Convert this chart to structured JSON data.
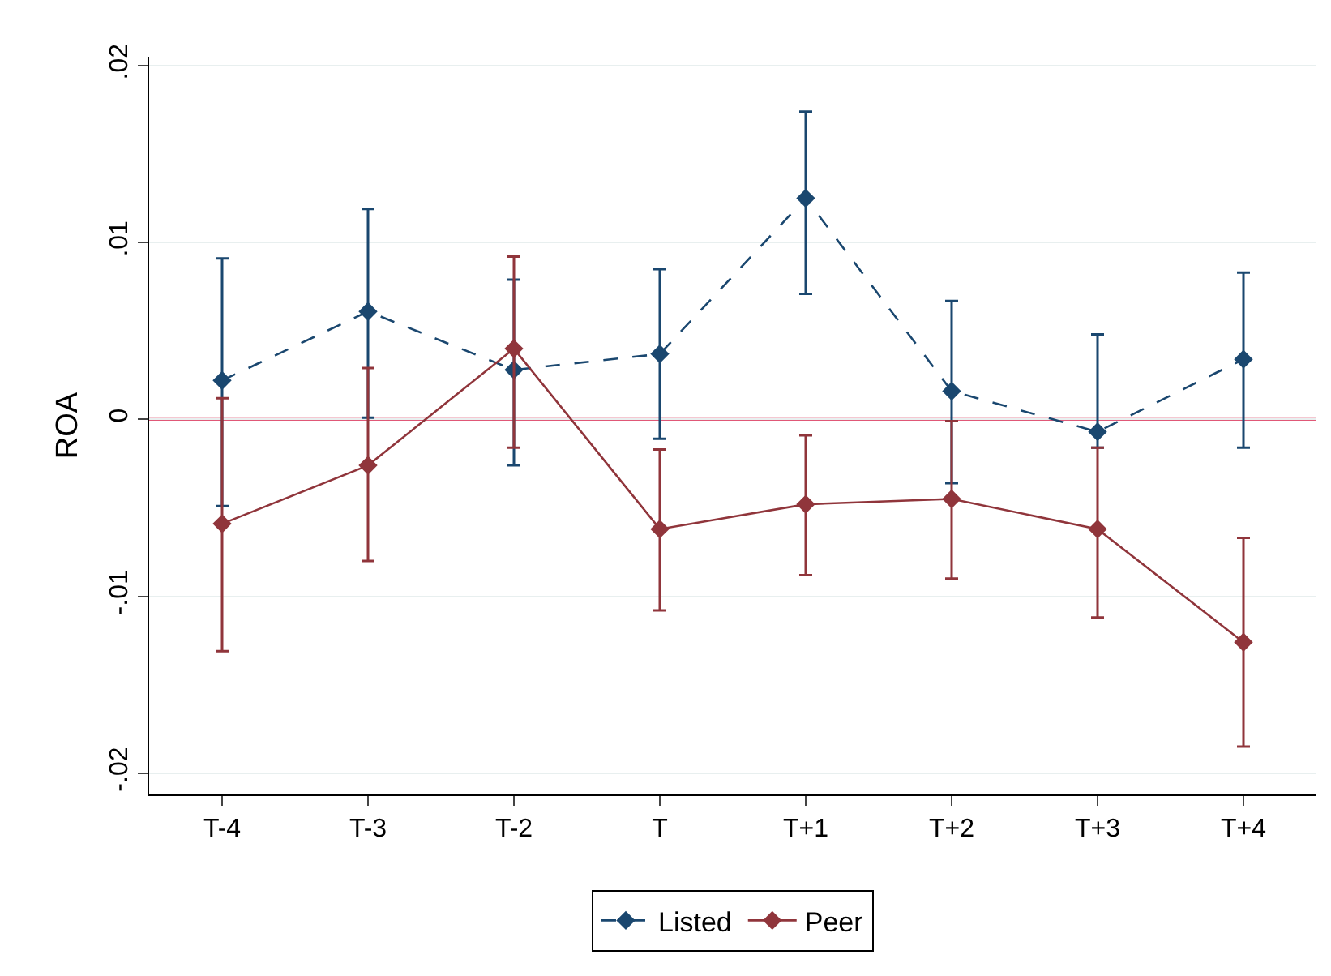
{
  "chart_data": {
    "type": "line",
    "ylabel": "ROA",
    "categories": [
      "T-4",
      "T-3",
      "T-2",
      "T",
      "T+1",
      "T+2",
      "T+3",
      "T+4"
    ],
    "series": [
      {
        "name": "Listed",
        "color": "#1a476f",
        "line_style": "dashed",
        "values": [
          0.0022,
          0.0061,
          0.0028,
          0.0037,
          0.0125,
          0.0016,
          -0.0007,
          0.0034
        ],
        "errors": [
          [
            -0.0049,
            0.0091
          ],
          [
            0.0001,
            0.0119
          ],
          [
            -0.0026,
            0.0079
          ],
          [
            -0.0011,
            0.0085
          ],
          [
            0.0071,
            0.0174
          ],
          [
            -0.0036,
            0.0067
          ],
          [
            -0.0016,
            0.0048
          ],
          [
            -0.0016,
            0.0083
          ]
        ]
      },
      {
        "name": "Peer",
        "color": "#90353b",
        "line_style": "solid",
        "values": [
          -0.0059,
          -0.0026,
          0.004,
          -0.0062,
          -0.0048,
          -0.0045,
          -0.0062,
          -0.0126
        ],
        "errors": [
          [
            -0.0131,
            0.0012
          ],
          [
            -0.008,
            0.0029
          ],
          [
            -0.0016,
            0.0092
          ],
          [
            -0.0108,
            -0.0017
          ],
          [
            -0.0088,
            -0.0009
          ],
          [
            -0.009,
            -0.0001
          ],
          [
            -0.0112,
            -0.0016
          ],
          [
            -0.0185,
            -0.0067
          ]
        ]
      }
    ],
    "marker": "diamond",
    "ylim": [
      -0.0212,
      0.0205
    ],
    "yticks": [
      {
        "value": -0.02,
        "label": "-.02"
      },
      {
        "value": -0.01,
        "label": "-.01"
      },
      {
        "value": 0,
        "label": "0"
      },
      {
        "value": 0.01,
        "label": ".01"
      },
      {
        "value": 0.02,
        "label": ".02"
      }
    ],
    "ref_lines": [
      {
        "axis": "y",
        "value": 0,
        "color": "#d6204a"
      }
    ],
    "grid": "y",
    "legend": "bottom"
  }
}
